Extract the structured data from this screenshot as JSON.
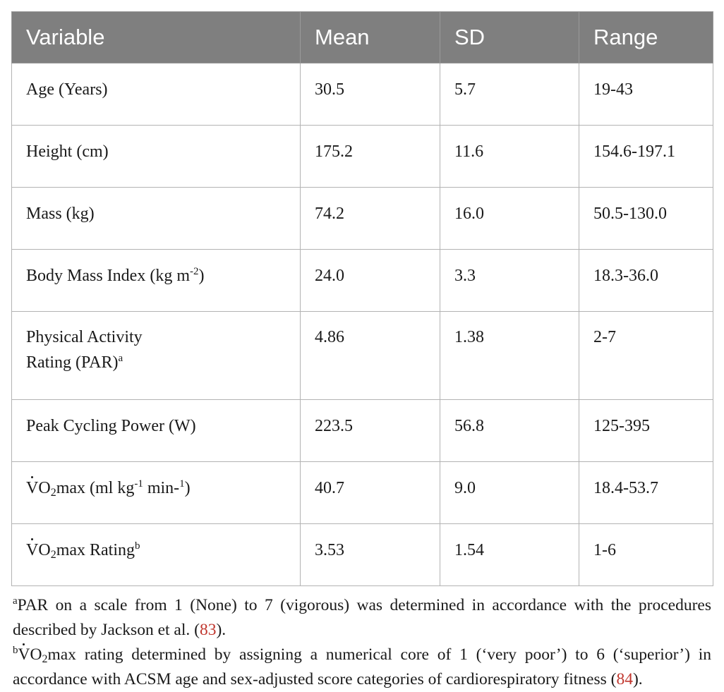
{
  "table": {
    "headers": [
      "Variable",
      "Mean",
      "SD",
      "Range"
    ],
    "rows": [
      {
        "variable": "Age (Years)",
        "mean": "30.5",
        "sd": "5.7",
        "range": "19-43"
      },
      {
        "variable": "Height (cm)",
        "mean": "175.2",
        "sd": "11.6",
        "range": "154.6-197.1"
      },
      {
        "variable": "Mass (kg)",
        "mean": "74.2",
        "sd": "16.0",
        "range": "50.5-130.0"
      },
      {
        "variable": "Body Mass Index (kg m",
        "variable_sup": "-2",
        "variable_tail": ")",
        "mean": "24.0",
        "sd": "3.3",
        "range": "18.3-36.0"
      },
      {
        "variable": "Physical Activity",
        "variable_line2": "Rating (PAR)",
        "variable_sup": "a",
        "mean": "4.86",
        "sd": "1.38",
        "range": "2-7"
      },
      {
        "variable": "Peak Cycling Power (W)",
        "mean": "223.5",
        "sd": "56.8",
        "range": "125-395"
      },
      {
        "variable_v": "V",
        "variable_o": "O",
        "variable_sub": "2",
        "variable": "max (ml kg",
        "variable_sup": "-1",
        "variable_mid": " min-",
        "variable_sup2": "1",
        "variable_tail": ")",
        "mean": "40.7",
        "sd": "9.0",
        "range": "18.4-53.7"
      },
      {
        "variable_v": "V",
        "variable_o": "O",
        "variable_sub": "2",
        "variable": "max Rating",
        "variable_sup": "b",
        "mean": "3.53",
        "sd": "1.54",
        "range": "1-6"
      }
    ]
  },
  "footnotes": {
    "a": {
      "marker": "a",
      "text": "PAR on a scale from 1 (None) to 7 (vigorous) was determined in accordance with the procedures described by Jackson et al. (",
      "ref": "83",
      "tail": ")."
    },
    "b": {
      "marker": "b",
      "v": "V",
      "o": "O",
      "sub": "2",
      "text": "max rating determined by assigning a numerical core of 1 (‘very poor’) to 6 (‘superior’) in accordance with ACSM age and sex-adjusted score categories of cardiorespiratory fitness (",
      "ref": "84",
      "tail": ")."
    }
  },
  "colors": {
    "header_bg": "#7f7f7f",
    "header_text": "#ffffff",
    "reference_link": "#c0352c",
    "grid": "#b3b3b3"
  }
}
